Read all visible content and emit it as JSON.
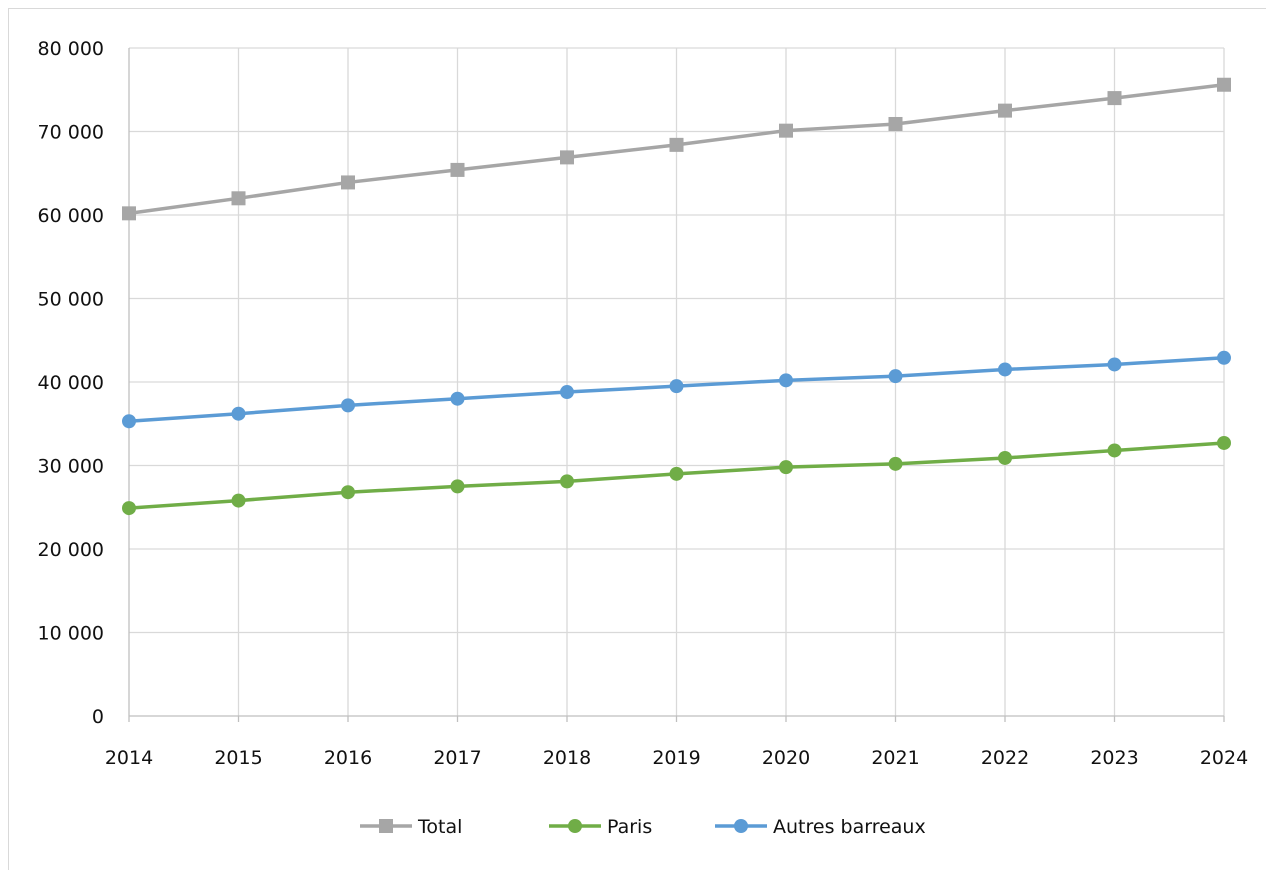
{
  "chart_data": {
    "type": "line",
    "title": "",
    "xlabel": "",
    "ylabel": "",
    "categories": [
      "2014",
      "2015",
      "2016",
      "2017",
      "2018",
      "2019",
      "2020",
      "2021",
      "2022",
      "2023",
      "2024"
    ],
    "ylim": [
      0,
      80000
    ],
    "yticks": [
      0,
      10000,
      20000,
      30000,
      40000,
      50000,
      60000,
      70000,
      80000
    ],
    "ytick_labels": [
      "0",
      "10 000",
      "20 000",
      "30 000",
      "40 000",
      "50 000",
      "60 000",
      "70 000",
      "80 000"
    ],
    "grid": true,
    "legend_position": "bottom",
    "series": [
      {
        "name": "Total",
        "color": "#a6a6a6",
        "marker": "square",
        "values": [
          60200,
          62000,
          63900,
          65400,
          66900,
          68400,
          70100,
          70900,
          72500,
          74000,
          75600
        ]
      },
      {
        "name": "Paris",
        "color": "#70ad47",
        "marker": "circle",
        "values": [
          24900,
          25800,
          26800,
          27500,
          28100,
          29000,
          29800,
          30200,
          30900,
          31800,
          32700
        ]
      },
      {
        "name": "Autres barreaux",
        "color": "#5b9bd5",
        "marker": "circle",
        "values": [
          35300,
          36200,
          37200,
          38000,
          38800,
          39500,
          40200,
          40700,
          41500,
          42100,
          42900
        ]
      }
    ]
  }
}
